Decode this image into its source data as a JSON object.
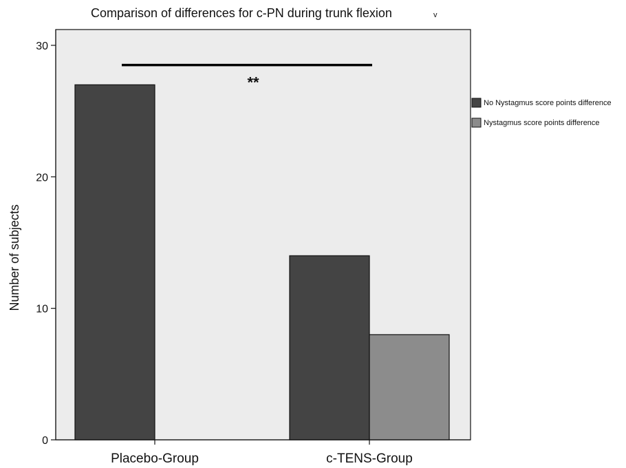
{
  "chart_data": {
    "type": "bar",
    "title": "Comparison of differences for c-PN during trunk flexion",
    "title_suffix": "v",
    "xlabel": "",
    "ylabel": "Number of subjects",
    "ylim": [
      0,
      30
    ],
    "yticks": [
      "0",
      "10",
      "20",
      "30"
    ],
    "categories": [
      "Placebo-Group",
      "c-TENS-Group"
    ],
    "series": [
      {
        "name": "No Nystagmus score points difference",
        "color": "#444444",
        "values": [
          27,
          14
        ]
      },
      {
        "name": "Nystagmus score points difference",
        "color": "#8c8c8c",
        "values": [
          0,
          8
        ]
      }
    ],
    "annotation": {
      "text": "**",
      "y": 28.5
    },
    "grid": false,
    "legend_position": "right",
    "plot_background": "#ececec"
  }
}
